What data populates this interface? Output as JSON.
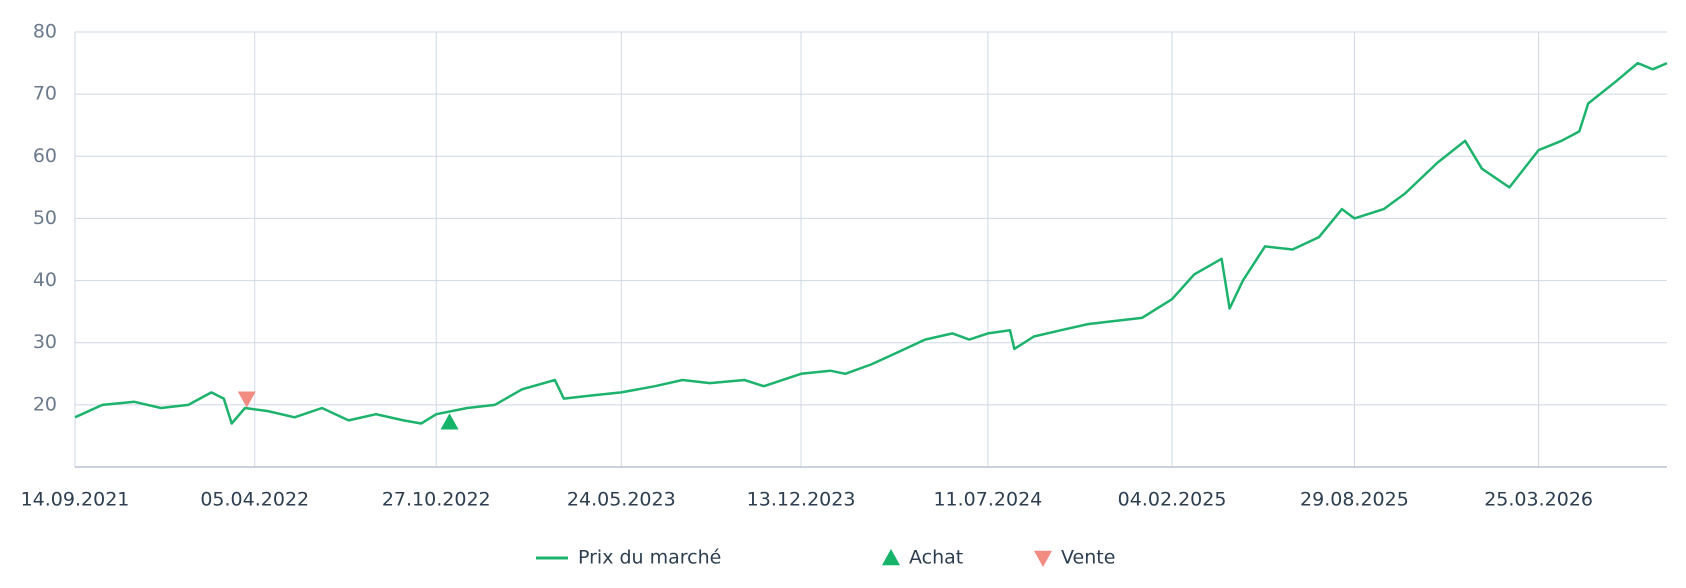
{
  "chart_data": {
    "type": "line",
    "xlim": [
      "2021-09-14",
      "2026-08-17"
    ],
    "xticks": [
      {
        "value": "2021-09-14",
        "label": "14.09.2021"
      },
      {
        "value": "2022-04-05",
        "label": "05.04.2022"
      },
      {
        "value": "2022-10-27",
        "label": "27.10.2022"
      },
      {
        "value": "2023-05-24",
        "label": "24.05.2023"
      },
      {
        "value": "2023-12-13",
        "label": "13.12.2023"
      },
      {
        "value": "2024-07-11",
        "label": "11.07.2024"
      },
      {
        "value": "2025-02-04",
        "label": "04.02.2025"
      },
      {
        "value": "2025-08-29",
        "label": "29.08.2025"
      },
      {
        "value": "2026-03-25",
        "label": "25.03.2026"
      }
    ],
    "ylim": [
      10,
      80
    ],
    "yticks": [
      20,
      30,
      40,
      50,
      60,
      70,
      80
    ],
    "grid": true,
    "legend": "bottom",
    "series": [
      {
        "name": "Prix du marché",
        "color": "#1db36c",
        "x": [
          "2021-09-14",
          "2021-10-15",
          "2021-11-20",
          "2021-12-20",
          "2022-01-20",
          "2022-02-15",
          "2022-03-01",
          "2022-03-10",
          "2022-03-25",
          "2022-04-20",
          "2022-05-20",
          "2022-06-20",
          "2022-07-20",
          "2022-08-20",
          "2022-09-20",
          "2022-10-10",
          "2022-10-27",
          "2022-12-01",
          "2023-01-01",
          "2023-02-01",
          "2023-03-10",
          "2023-03-20",
          "2023-04-20",
          "2023-05-24",
          "2023-07-01",
          "2023-08-01",
          "2023-09-01",
          "2023-10-10",
          "2023-11-01",
          "2023-12-13",
          "2024-01-15",
          "2024-02-01",
          "2024-03-01",
          "2024-04-01",
          "2024-05-01",
          "2024-06-01",
          "2024-06-20",
          "2024-07-11",
          "2024-08-05",
          "2024-08-10",
          "2024-09-01",
          "2024-10-01",
          "2024-11-01",
          "2024-12-01",
          "2025-01-01",
          "2025-02-04",
          "2025-03-01",
          "2025-04-01",
          "2025-04-10",
          "2025-04-25",
          "2025-05-20",
          "2025-06-20",
          "2025-07-20",
          "2025-08-15",
          "2025-08-29",
          "2025-10-01",
          "2025-10-25",
          "2025-12-01",
          "2026-01-01",
          "2026-01-20",
          "2026-02-20",
          "2026-03-25",
          "2026-04-20",
          "2026-05-10",
          "2026-05-20",
          "2026-06-20",
          "2026-07-15",
          "2026-08-01",
          "2026-08-17"
        ],
        "values": [
          18,
          20,
          20.5,
          19.5,
          20,
          22,
          21,
          17,
          19.5,
          19,
          18,
          19.5,
          17.5,
          18.5,
          17.5,
          17,
          18.5,
          19.5,
          20,
          22.5,
          24,
          21,
          21.5,
          22,
          23,
          24,
          23.5,
          24,
          23,
          25,
          25.5,
          25,
          26.5,
          28.5,
          30.5,
          31.5,
          30.5,
          31.5,
          32,
          29,
          31,
          32,
          33,
          33.5,
          34,
          37,
          41,
          43.5,
          35.5,
          40,
          45.5,
          45,
          47,
          51.5,
          50,
          51.5,
          54,
          59,
          62.5,
          58,
          55,
          61,
          62.5,
          64,
          68.5,
          72,
          75,
          74,
          75
        ]
      }
    ],
    "markers": [
      {
        "name": "Achat",
        "symbol": "triangle-up",
        "color": "#16b36a",
        "x": [
          "2022-11-11"
        ],
        "values": [
          17.2
        ]
      },
      {
        "name": "Vente",
        "symbol": "triangle-down",
        "color": "#f28b82",
        "x": [
          "2022-03-27"
        ],
        "values": [
          21
        ]
      }
    ]
  }
}
